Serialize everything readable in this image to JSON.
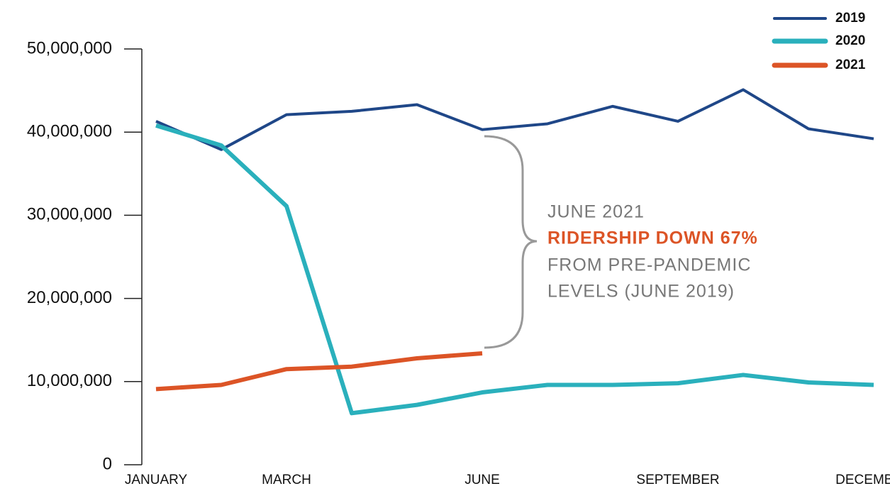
{
  "chart_data": {
    "type": "line",
    "categories": [
      "JANUARY",
      null,
      "MARCH",
      null,
      null,
      "JUNE",
      null,
      null,
      "SEPTEMBER",
      null,
      null,
      "DECEMBER"
    ],
    "series": [
      {
        "name": "2019",
        "color": "#1f4788",
        "values": [
          41300000,
          37900000,
          42100000,
          42500000,
          43300000,
          40300000,
          41000000,
          43100000,
          41300000,
          45100000,
          40400000,
          39200000
        ]
      },
      {
        "name": "2020",
        "color": "#2ab0bc",
        "values": [
          40800000,
          38400000,
          31100000,
          6200000,
          7200000,
          8700000,
          9600000,
          9600000,
          9800000,
          10800000,
          9900000,
          9600000
        ]
      },
      {
        "name": "2021",
        "color": "#dc5426",
        "values": [
          9100000,
          9600000,
          11500000,
          11800000,
          12800000,
          13400000,
          null,
          null,
          null,
          null,
          null,
          null
        ]
      }
    ],
    "ylim": [
      0,
      50000000
    ],
    "yticks": [
      0,
      {
        "value": 10000000,
        "label": "10,000,000"
      },
      {
        "value": 20000000,
        "label": "20,000,000"
      },
      {
        "value": 30000000,
        "label": "30,000,000"
      },
      {
        "value": 40000000,
        "label": "40,000,000"
      },
      {
        "value": 50000000,
        "label": "50,000,000"
      }
    ],
    "legend": "top-right",
    "annotation": [
      "JUNE 2021",
      "RIDERSHIP DOWN 67%",
      "FROM PRE-PANDEMIC",
      "LEVELS (JUNE 2019)"
    ]
  }
}
